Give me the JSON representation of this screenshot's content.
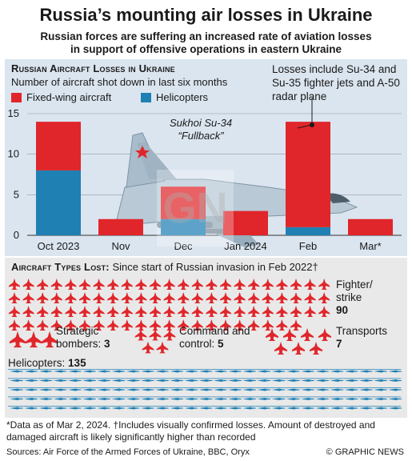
{
  "title": "Russia’s mounting air losses in Ukraine",
  "subtitle_line1": "Russian forces are suffering an increased rate of aviation losses",
  "subtitle_line2": "in support of offensive operations in eastern Ukraine",
  "chart_data": {
    "type": "bar",
    "title": "Russian Aircraft Losses in Ukraine",
    "subtitle": "Number of aircraft shot down in last six months",
    "categories": [
      "Oct 2023",
      "Nov",
      "Dec",
      "Jan 2024",
      "Feb",
      "Mar*"
    ],
    "series": [
      {
        "name": "Fixed-wing aircraft",
        "color": "#e0262a",
        "values": [
          6,
          2,
          4,
          3,
          13,
          2
        ]
      },
      {
        "name": "Helicopters",
        "color": "#1f80b4",
        "values": [
          8,
          0,
          2,
          0,
          1,
          0
        ]
      }
    ],
    "stacked": true,
    "yticks": [
      "0",
      "5",
      "10",
      "15"
    ],
    "ylim": [
      0,
      15
    ],
    "grid": true,
    "annotation": "Losses include Su-34 and Su-35 fighter jets and A-50 radar plane",
    "image_caption_line1": "Sukhoi Su-34",
    "image_caption_line2": "“Fullback”"
  },
  "legend": {
    "fixed_wing": "Fixed-wing aircraft",
    "helicopters": "Helicopters"
  },
  "types": {
    "heading_bold": "Aircraft Types Lost:",
    "heading_rest": " Since start of Russian invasion in Feb 2022†",
    "fighter_label": "Fighter/ strike",
    "fighter_count": 90,
    "bombers_label": "Strategic bombers:",
    "bombers_count": 3,
    "command_label": "Command and control:",
    "command_count": 5,
    "transports_label": "Transports",
    "transports_count": 7,
    "helicopters_label": "Helicopters:",
    "helicopters_count": 135
  },
  "footnote": "*Data as of Mar 2, 2024. †Includes visually confirmed losses. Amount of destroyed and damaged aircraft is likely significantly higher than recorded",
  "sources": "Sources: Air Force of the Armed Forces of Ukraine, BBC, Oryx",
  "credit": "© GRAPHIC NEWS",
  "colors": {
    "red": "#e0262a",
    "blue": "#1f80b4",
    "panel": "#dbe5ef"
  }
}
